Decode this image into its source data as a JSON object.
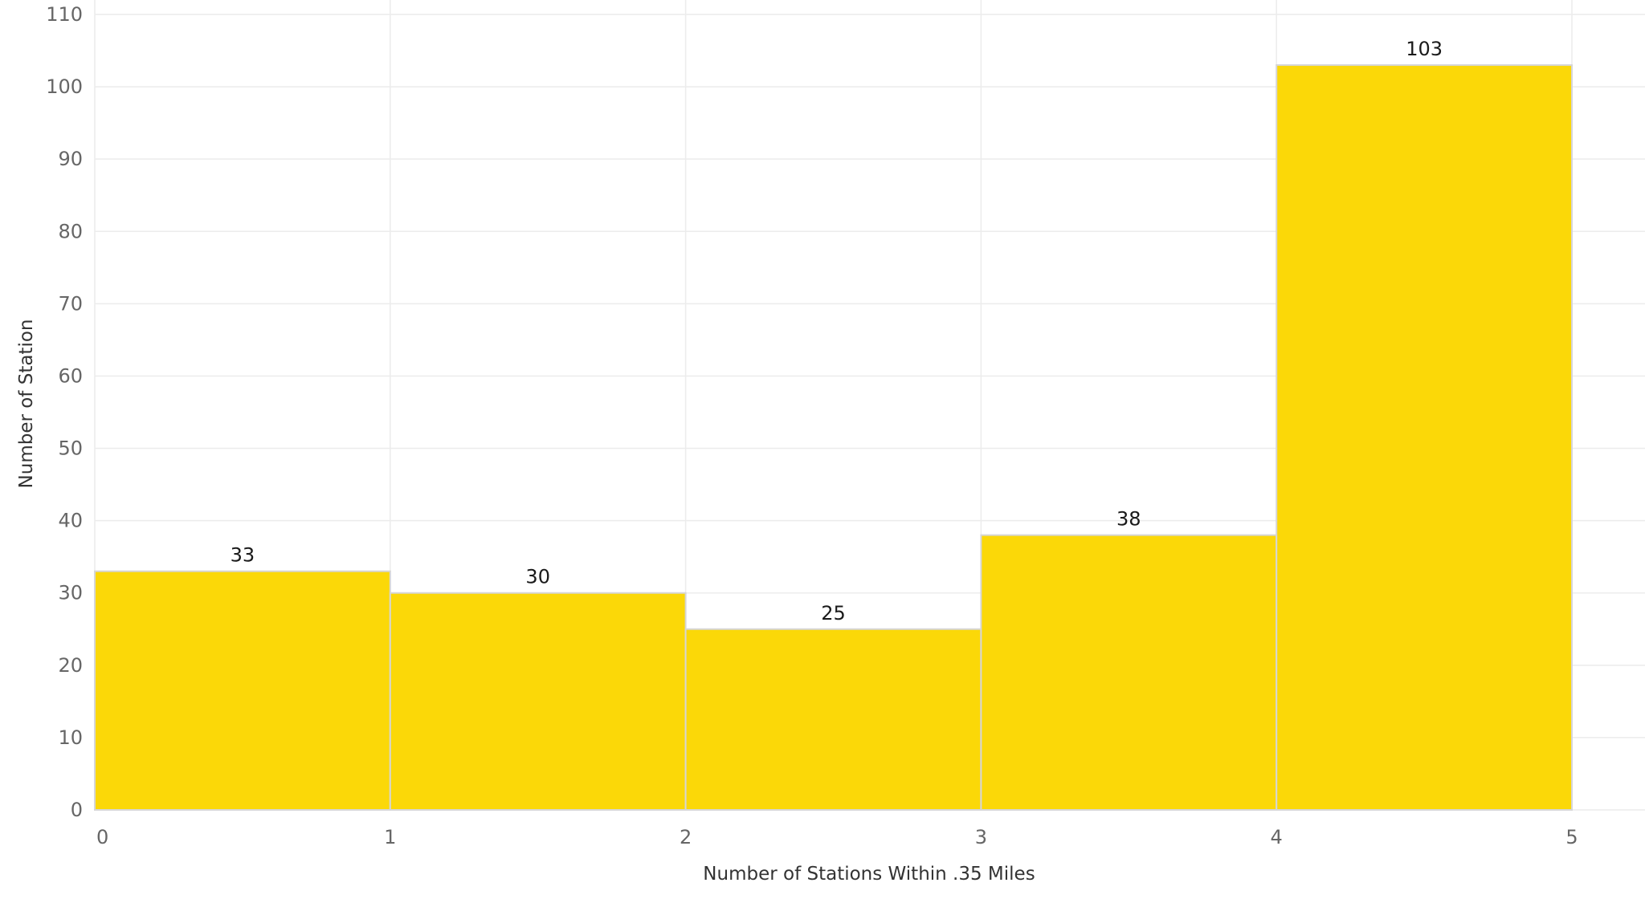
{
  "chart_data": {
    "type": "bar",
    "bins": [
      {
        "start": 0,
        "end": 1,
        "value": 33
      },
      {
        "start": 1,
        "end": 2,
        "value": 30
      },
      {
        "start": 2,
        "end": 3,
        "value": 25
      },
      {
        "start": 3,
        "end": 4,
        "value": 38
      },
      {
        "start": 4,
        "end": 5,
        "value": 103
      }
    ],
    "x_ticks": [
      0,
      1,
      2,
      3,
      4,
      5
    ],
    "y_ticks": [
      0,
      10,
      20,
      30,
      40,
      50,
      60,
      70,
      80,
      90,
      100,
      110
    ],
    "xlim": [
      0,
      5
    ],
    "ylim": [
      0,
      110
    ],
    "xlabel": "Number of Stations Within .35 Miles",
    "ylabel": "Number of Station",
    "grid": true,
    "legend": "none",
    "bar_color": "#FBD808",
    "bar_edge_color": "#D6D6D6"
  }
}
